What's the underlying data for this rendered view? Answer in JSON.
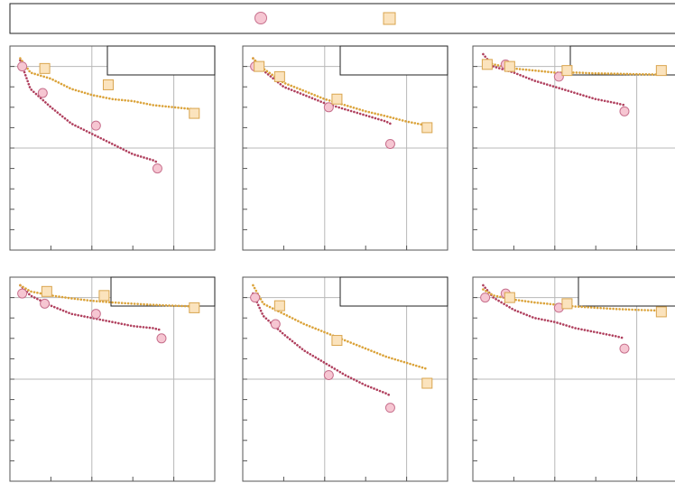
{
  "legend": {
    "series": [
      {
        "key": "a",
        "marker": "circle",
        "fill": "#f6c6d2",
        "stroke": "#c7708d"
      },
      {
        "key": "b",
        "marker": "square",
        "fill": "#fbe3bd",
        "stroke": "#d9a54f"
      }
    ]
  },
  "colors": {
    "series_a_line": "#b0405e",
    "series_b_line": "#dba33a",
    "overlap_line": "#8f7a2b",
    "axis": "#555555",
    "grid": "#b8b8b8"
  },
  "chart_data": [
    {
      "type": "scatter",
      "xlim": [
        0,
        5
      ],
      "ylim": [
        -2.5,
        2.5
      ],
      "grid": true,
      "legend": "none",
      "series": [
        {
          "marker": "circle",
          "points": [
            [
              0.3,
              2.0
            ],
            [
              0.8,
              1.35
            ],
            [
              2.1,
              0.55
            ],
            [
              3.6,
              -0.5
            ]
          ],
          "fit": [
            [
              0.25,
              2.15
            ],
            [
              0.5,
              1.45
            ],
            [
              1.0,
              1.0
            ],
            [
              1.5,
              0.6
            ],
            [
              2.0,
              0.35
            ],
            [
              2.5,
              0.1
            ],
            [
              3.0,
              -0.15
            ],
            [
              3.5,
              -0.3
            ],
            [
              3.6,
              -0.35
            ]
          ]
        },
        {
          "marker": "square",
          "points": [
            [
              0.85,
              1.95
            ],
            [
              2.4,
              1.55
            ],
            [
              4.5,
              0.85
            ]
          ],
          "fit": [
            [
              0.25,
              2.2
            ],
            [
              0.5,
              1.85
            ],
            [
              1.0,
              1.7
            ],
            [
              1.5,
              1.45
            ],
            [
              2.0,
              1.3
            ],
            [
              2.5,
              1.2
            ],
            [
              3.0,
              1.15
            ],
            [
              3.5,
              1.05
            ],
            [
              4.0,
              1.0
            ],
            [
              4.5,
              0.95
            ]
          ]
        }
      ]
    },
    {
      "type": "scatter",
      "xlim": [
        0,
        5
      ],
      "ylim": [
        -2.5,
        2.5
      ],
      "grid": true,
      "legend": "none",
      "series": [
        {
          "marker": "circle",
          "points": [
            [
              0.3,
              2.0
            ],
            [
              2.1,
              1.0
            ],
            [
              3.6,
              0.1
            ]
          ],
          "fit": [
            [
              0.25,
              2.2
            ],
            [
              0.5,
              1.9
            ],
            [
              1.0,
              1.5
            ],
            [
              1.5,
              1.3
            ],
            [
              2.0,
              1.1
            ],
            [
              2.5,
              0.95
            ],
            [
              3.0,
              0.8
            ],
            [
              3.5,
              0.65
            ],
            [
              3.6,
              0.6
            ]
          ]
        },
        {
          "marker": "square",
          "points": [
            [
              0.4,
              2.0
            ],
            [
              0.9,
              1.75
            ],
            [
              2.3,
              1.2
            ],
            [
              4.5,
              0.5
            ]
          ],
          "fit": [
            [
              0.25,
              2.2
            ],
            [
              0.5,
              1.95
            ],
            [
              1.0,
              1.6
            ],
            [
              1.5,
              1.4
            ],
            [
              2.0,
              1.2
            ],
            [
              2.5,
              1.05
            ],
            [
              3.0,
              0.9
            ],
            [
              3.5,
              0.78
            ],
            [
              4.0,
              0.65
            ],
            [
              4.5,
              0.55
            ]
          ]
        }
      ]
    },
    {
      "type": "scatter",
      "xlim": [
        0,
        5
      ],
      "ylim": [
        -2.5,
        2.5
      ],
      "grid": true,
      "legend": "none",
      "series": [
        {
          "marker": "circle",
          "points": [
            [
              0.35,
              2.05
            ],
            [
              0.8,
              2.05
            ],
            [
              2.1,
              1.75
            ],
            [
              3.7,
              0.9
            ]
          ],
          "fit": [
            [
              0.25,
              2.3
            ],
            [
              0.5,
              2.0
            ],
            [
              1.0,
              1.85
            ],
            [
              1.5,
              1.65
            ],
            [
              2.0,
              1.5
            ],
            [
              2.5,
              1.35
            ],
            [
              3.0,
              1.2
            ],
            [
              3.5,
              1.1
            ],
            [
              3.7,
              1.05
            ]
          ]
        },
        {
          "marker": "square",
          "points": [
            [
              0.35,
              2.05
            ],
            [
              0.9,
              2.0
            ],
            [
              2.3,
              1.9
            ],
            [
              4.6,
              1.9
            ]
          ],
          "fit": [
            [
              0.25,
              2.15
            ],
            [
              0.5,
              2.05
            ],
            [
              1.0,
              1.95
            ],
            [
              1.5,
              1.9
            ],
            [
              2.0,
              1.85
            ],
            [
              2.5,
              1.85
            ],
            [
              3.0,
              1.83
            ],
            [
              3.5,
              1.82
            ],
            [
              4.0,
              1.81
            ],
            [
              4.6,
              1.8
            ]
          ]
        }
      ]
    },
    {
      "type": "scatter",
      "xlim": [
        0,
        5
      ],
      "ylim": [
        -2.5,
        2.5
      ],
      "grid": true,
      "legend": "none",
      "series": [
        {
          "marker": "circle",
          "points": [
            [
              0.3,
              2.1
            ],
            [
              0.85,
              1.85
            ],
            [
              2.1,
              1.6
            ],
            [
              3.7,
              1.0
            ]
          ],
          "fit": [
            [
              0.25,
              2.3
            ],
            [
              0.5,
              2.05
            ],
            [
              1.0,
              1.8
            ],
            [
              1.5,
              1.6
            ],
            [
              2.0,
              1.5
            ],
            [
              2.5,
              1.4
            ],
            [
              3.0,
              1.3
            ],
            [
              3.5,
              1.25
            ],
            [
              3.7,
              1.2
            ]
          ]
        },
        {
          "marker": "square",
          "points": [
            [
              0.9,
              2.15
            ],
            [
              2.3,
              2.05
            ],
            [
              4.5,
              1.75
            ]
          ],
          "fit": [
            [
              0.25,
              2.3
            ],
            [
              0.5,
              2.15
            ],
            [
              1.0,
              2.05
            ],
            [
              1.5,
              1.98
            ],
            [
              2.0,
              1.92
            ],
            [
              2.5,
              1.88
            ],
            [
              3.0,
              1.85
            ],
            [
              3.5,
              1.82
            ],
            [
              4.0,
              1.8
            ],
            [
              4.5,
              1.78
            ]
          ]
        }
      ]
    },
    {
      "type": "scatter",
      "xlim": [
        0,
        5
      ],
      "ylim": [
        -2.5,
        2.5
      ],
      "grid": true,
      "legend": "none",
      "series": [
        {
          "marker": "circle",
          "points": [
            [
              0.3,
              2.0
            ],
            [
              0.8,
              1.35
            ],
            [
              2.1,
              0.1
            ],
            [
              3.6,
              -0.7
            ]
          ],
          "fit": [
            [
              0.25,
              2.1
            ],
            [
              0.5,
              1.55
            ],
            [
              1.0,
              1.1
            ],
            [
              1.5,
              0.7
            ],
            [
              2.0,
              0.4
            ],
            [
              2.5,
              0.1
            ],
            [
              3.0,
              -0.15
            ],
            [
              3.5,
              -0.35
            ],
            [
              3.6,
              -0.4
            ]
          ]
        },
        {
          "marker": "square",
          "points": [
            [
              0.9,
              1.8
            ],
            [
              2.3,
              0.95
            ],
            [
              4.5,
              -0.1
            ]
          ],
          "fit": [
            [
              0.25,
              2.3
            ],
            [
              0.5,
              1.85
            ],
            [
              1.0,
              1.6
            ],
            [
              1.5,
              1.35
            ],
            [
              2.0,
              1.15
            ],
            [
              2.5,
              0.95
            ],
            [
              3.0,
              0.75
            ],
            [
              3.5,
              0.55
            ],
            [
              4.0,
              0.4
            ],
            [
              4.5,
              0.25
            ]
          ]
        }
      ]
    },
    {
      "type": "scatter",
      "xlim": [
        0,
        5
      ],
      "ylim": [
        -2.5,
        2.5
      ],
      "grid": true,
      "legend": "none",
      "series": [
        {
          "marker": "circle",
          "points": [
            [
              0.3,
              2.0
            ],
            [
              0.8,
              2.1
            ],
            [
              2.1,
              1.75
            ],
            [
              3.7,
              0.75
            ]
          ],
          "fit": [
            [
              0.25,
              2.3
            ],
            [
              0.5,
              2.0
            ],
            [
              1.0,
              1.7
            ],
            [
              1.5,
              1.5
            ],
            [
              2.0,
              1.4
            ],
            [
              2.5,
              1.25
            ],
            [
              3.0,
              1.15
            ],
            [
              3.5,
              1.05
            ],
            [
              3.7,
              1.0
            ]
          ]
        },
        {
          "marker": "square",
          "points": [
            [
              0.9,
              2.0
            ],
            [
              2.3,
              1.85
            ],
            [
              4.6,
              1.65
            ]
          ],
          "fit": [
            [
              0.25,
              2.2
            ],
            [
              0.5,
              2.05
            ],
            [
              1.0,
              1.95
            ],
            [
              1.5,
              1.88
            ],
            [
              2.0,
              1.83
            ],
            [
              2.5,
              1.78
            ],
            [
              3.0,
              1.75
            ],
            [
              3.5,
              1.72
            ],
            [
              4.0,
              1.7
            ],
            [
              4.6,
              1.68
            ]
          ]
        }
      ]
    }
  ]
}
